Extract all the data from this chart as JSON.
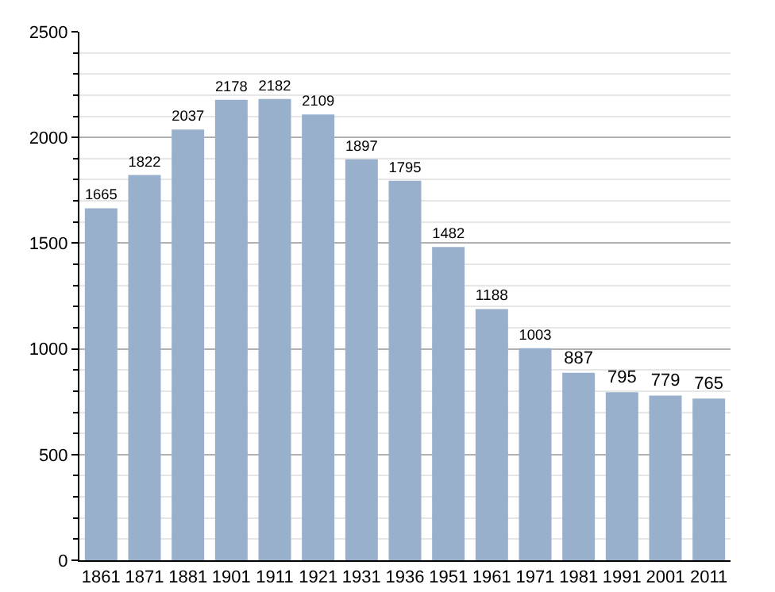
{
  "chart_data": {
    "type": "bar",
    "categories": [
      "1861",
      "1871",
      "1881",
      "1901",
      "1911",
      "1921",
      "1931",
      "1936",
      "1951",
      "1961",
      "1971",
      "1981",
      "1991",
      "2001",
      "2011"
    ],
    "values": [
      1665,
      1822,
      2037,
      2178,
      2182,
      2109,
      1897,
      1795,
      1482,
      1188,
      1003,
      887,
      795,
      779,
      765
    ],
    "color": "#98b0cc",
    "ylim": [
      0,
      2500
    ],
    "yticks": [
      0,
      500,
      1000,
      1500,
      2000,
      2500
    ],
    "grid": true,
    "data_labels": true
  }
}
